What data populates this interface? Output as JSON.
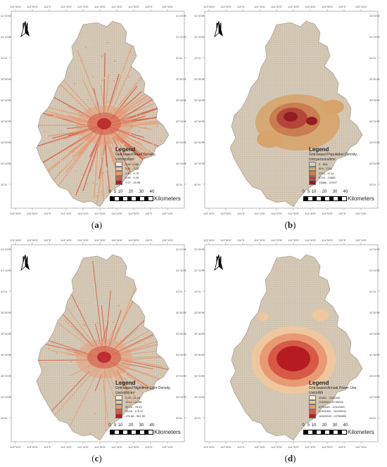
{
  "panels": [
    {
      "label": "(a)",
      "legend_title": "Legend",
      "legend_subtitle": "Grid-based Road Density,",
      "legend_unit": "Unit:km/km²",
      "classes": [
        {
          "range": "0.00 - 0.86",
          "color": "#f6ecd9"
        },
        {
          "range": "0.87 - 2.79",
          "color": "#efc79f"
        },
        {
          "range": "2.80 - 5.79",
          "color": "#e79a74"
        },
        {
          "range": "5.80 - 9.26",
          "color": "#d65a45"
        },
        {
          "range": "9.27 - 20.98",
          "color": "#b51d22"
        }
      ]
    },
    {
      "label": "(b)",
      "legend_title": "Legend",
      "legend_subtitle": "Grid-based Population Density,",
      "legend_unit": "Unit:persons/km²",
      "classes": [
        {
          "range": "0 - 808",
          "color": "#d8cdb9"
        },
        {
          "range": "809 - 2761",
          "color": "#d7a46b"
        },
        {
          "range": "2762 - 5714",
          "color": "#c97d50"
        },
        {
          "range": "5715 - 13865",
          "color": "#b4463a"
        },
        {
          "range": "13866 - 37537",
          "color": "#951d22"
        }
      ]
    },
    {
      "label": "(c)",
      "legend_title": "Legend",
      "legend_subtitle": "Grid-based Nighttime Light Density,",
      "legend_unit": "Unit:nW/cm²",
      "classes": [
        {
          "range": "0.53 - 11.43",
          "color": "#f6ecd9"
        },
        {
          "range": "11.43 - 31.55",
          "color": "#efc79f"
        },
        {
          "range": "31.55 - 78.03",
          "color": "#e79a74"
        },
        {
          "range": "78.04 - 173.47",
          "color": "#d65a45"
        },
        {
          "range": "175.48 - 351.59",
          "color": "#b51d22"
        }
      ]
    },
    {
      "label": "(d)",
      "legend_title": "Legend",
      "legend_subtitle": "Grid-based Annual Power Use,",
      "legend_unit": "Unit:kWh",
      "classes": [
        {
          "range": "39361 - 2252000",
          "color": "#f6ecd9"
        },
        {
          "range": "2252000 - 6730046",
          "color": "#efc79f"
        },
        {
          "range": "6730046 - 11302400",
          "color": "#e79a74"
        },
        {
          "range": "11302400 - 16402000",
          "color": "#d65a45"
        },
        {
          "range": "16402000 - 22796800",
          "color": "#b51d22"
        }
      ]
    }
  ],
  "scale": {
    "ticks": [
      "0",
      "5",
      "10",
      "20",
      "30",
      "40"
    ],
    "unit": "Kilometers"
  },
  "north_label": "N",
  "lon_ticks": [
    "113°40'E",
    "113°50'E",
    "114°E",
    "114°10'E",
    "114°20'E",
    "114°30'E",
    "114°40'E",
    "114°50'E",
    "115°E",
    "115°10'E"
  ],
  "lat_ticks": [
    "31°20'N",
    "31°10'N",
    "31°N",
    "30°50'N",
    "30°40'N",
    "30°30'N",
    "30°20'N",
    "30°10'N",
    "30°N"
  ],
  "colors": {
    "base_grid": "#d6cbb8",
    "grid_line": "#b9ab93"
  }
}
